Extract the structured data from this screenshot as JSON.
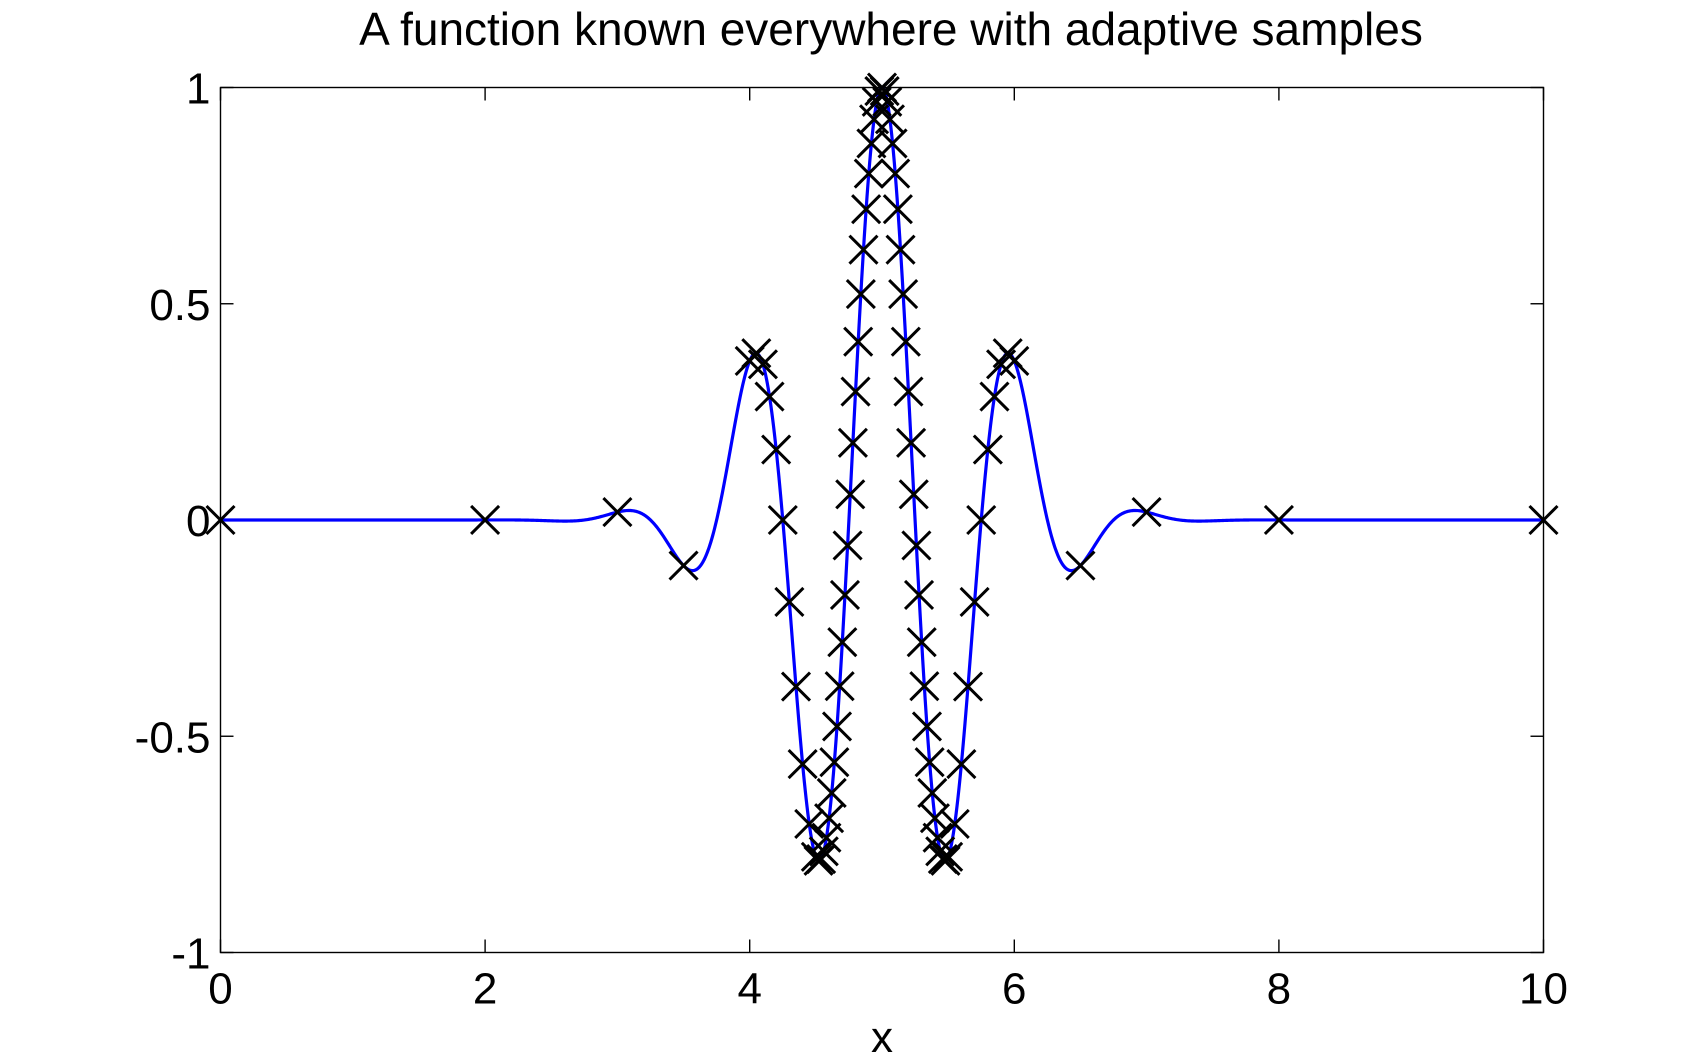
{
  "chart_data": {
    "type": "line",
    "title": "A function known everywhere with adaptive samples",
    "xlabel": "x",
    "ylabel": "",
    "xlim": [
      0,
      10
    ],
    "ylim": [
      -1,
      1
    ],
    "xticks": [
      0,
      2,
      4,
      6,
      8,
      10
    ],
    "xtick_labels": [
      "0",
      "2",
      "4",
      "6",
      "8",
      "10"
    ],
    "yticks": [
      -1,
      -0.5,
      0,
      0.5,
      1
    ],
    "ytick_labels": [
      "-1",
      "-0.5",
      "0",
      "0.5",
      "1"
    ],
    "grid": false,
    "box": true,
    "series": [
      {
        "style": "line",
        "color": "#0000ff",
        "function": "exp(-(x-5)^2) * cos(2*pi*(x-5))",
        "x_range": [
          0,
          10
        ]
      },
      {
        "style": "markers",
        "marker": "x",
        "color": "#000000",
        "x": [
          0,
          2,
          3,
          3.5,
          4,
          4.05,
          4.1,
          4.15,
          4.2,
          4.25,
          4.3,
          4.35,
          4.4,
          4.45,
          4.5,
          4.52,
          4.54,
          4.56,
          4.58,
          4.6,
          4.62,
          4.64,
          4.66,
          4.68,
          4.7,
          4.72,
          4.74,
          4.76,
          4.78,
          4.8,
          4.82,
          4.84,
          4.86,
          4.88,
          4.9,
          4.92,
          4.94,
          4.96,
          4.98,
          5,
          5.02,
          5.04,
          5.06,
          5.08,
          5.1,
          5.12,
          5.14,
          5.16,
          5.18,
          5.2,
          5.22,
          5.24,
          5.26,
          5.28,
          5.3,
          5.32,
          5.34,
          5.36,
          5.38,
          5.4,
          5.42,
          5.44,
          5.46,
          5.48,
          5.5,
          5.55,
          5.6,
          5.65,
          5.7,
          5.75,
          5.8,
          5.85,
          5.9,
          5.95,
          6,
          6.5,
          7,
          8,
          10
        ]
      }
    ]
  }
}
